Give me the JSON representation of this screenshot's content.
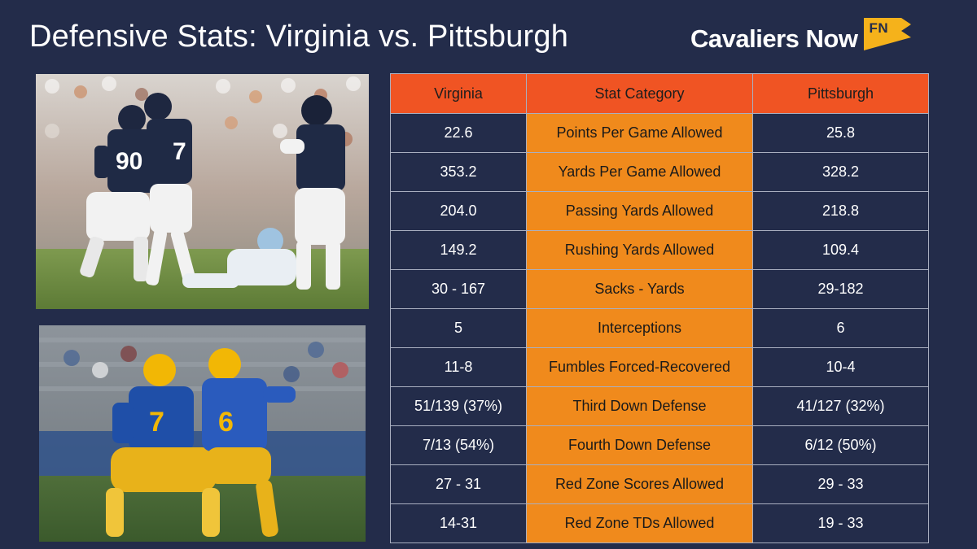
{
  "header": {
    "title": "Defensive Stats: Virginia vs. Pittsburgh",
    "brand_name": "Cavaliers Now",
    "brand_logo_text": "FN"
  },
  "colors": {
    "background": "#232c4a",
    "header_cell": "#f05423",
    "category_cell": "#f08a1c",
    "grid": "#a9afc0"
  },
  "photos": {
    "virginia": {
      "jersey_numbers": [
        "90",
        "7"
      ]
    },
    "pittsburgh": {
      "jersey_numbers": [
        "7",
        "6"
      ]
    }
  },
  "table": {
    "headers": {
      "left": "Virginia",
      "middle": "Stat Category",
      "right": "Pittsburgh"
    },
    "rows": [
      {
        "virginia": "22.6",
        "category": "Points Per Game Allowed",
        "pittsburgh": "25.8"
      },
      {
        "virginia": "353.2",
        "category": "Yards Per Game Allowed",
        "pittsburgh": "328.2"
      },
      {
        "virginia": "204.0",
        "category": "Passing Yards Allowed",
        "pittsburgh": "218.8"
      },
      {
        "virginia": "149.2",
        "category": "Rushing Yards Allowed",
        "pittsburgh": "109.4"
      },
      {
        "virginia": "30 - 167",
        "category": "Sacks - Yards",
        "pittsburgh": "29-182"
      },
      {
        "virginia": "5",
        "category": "Interceptions",
        "pittsburgh": "6"
      },
      {
        "virginia": "11-8",
        "category": "Fumbles Forced-Recovered",
        "pittsburgh": "10-4"
      },
      {
        "virginia": "51/139 (37%)",
        "category": "Third Down Defense",
        "pittsburgh": "41/127 (32%)"
      },
      {
        "virginia": "7/13 (54%)",
        "category": "Fourth Down Defense",
        "pittsburgh": "6/12 (50%)"
      },
      {
        "virginia": "27 - 31",
        "category": "Red Zone Scores Allowed",
        "pittsburgh": "29 - 33"
      },
      {
        "virginia": "14-31",
        "category": "Red Zone TDs Allowed",
        "pittsburgh": "19 - 33"
      }
    ]
  }
}
